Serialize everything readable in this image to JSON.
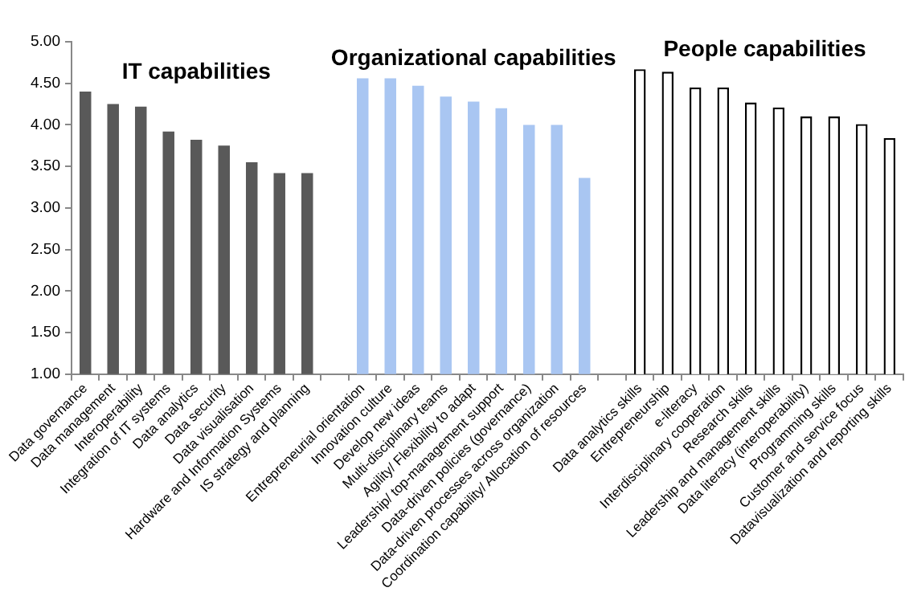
{
  "chart_data": {
    "type": "bar",
    "categories": [
      "Data governance",
      "Data management",
      "Interoperability",
      "Integration of IT systems",
      "Data analytics",
      "Data security",
      "Data visualisation",
      "Hardware and Information Systems",
      "IS strategy and planning",
      null,
      "Entrepreneurial orientation",
      "Innovation culture",
      "Develop new ideas",
      "Multi-disciplinary teams",
      "Agility/ Flexibility to adapt",
      "Leadership/ top-management support",
      "Data-driven policies (governance)",
      "Data-driven processes across organization",
      "Coordination capability/ Allocation of resources",
      null,
      "Data analytics skills",
      "Entrepreneurship",
      "e-literacy",
      "Interdisciplinary cooperation",
      "Research skills",
      "Leadership and management skills",
      "Data literacy (interoperability)",
      "Programming skills",
      "Customer and service focus",
      "Datavisualization and reporting skills"
    ],
    "series": [
      {
        "name": "IT capabilities",
        "color": "#595959",
        "values": [
          4.4,
          4.25,
          4.22,
          3.92,
          3.82,
          3.75,
          3.55,
          3.42,
          3.42,
          null,
          null,
          null,
          null,
          null,
          null,
          null,
          null,
          null,
          null,
          null,
          null,
          null,
          null,
          null,
          null,
          null,
          null,
          null,
          null,
          null
        ]
      },
      {
        "name": "Organizational capabilities",
        "color": "#a9c6f2",
        "values": [
          null,
          null,
          null,
          null,
          null,
          null,
          null,
          null,
          null,
          null,
          4.56,
          4.56,
          4.47,
          4.34,
          4.28,
          4.2,
          4.0,
          4.0,
          3.36,
          null,
          null,
          null,
          null,
          null,
          null,
          null,
          null,
          null,
          null,
          null
        ]
      },
      {
        "name": "People capabilities",
        "color": "#ffffff",
        "values": [
          null,
          null,
          null,
          null,
          null,
          null,
          null,
          null,
          null,
          null,
          null,
          null,
          null,
          null,
          null,
          null,
          null,
          null,
          null,
          null,
          4.67,
          4.64,
          4.45,
          4.45,
          4.27,
          4.21,
          4.1,
          4.1,
          4.01,
          3.84
        ]
      }
    ],
    "ylim": [
      1,
      5
    ],
    "yticks": [
      {
        "value": 1,
        "label": "1.00"
      },
      {
        "value": 1.5,
        "label": "1.50"
      },
      {
        "value": 2,
        "label": "2.00"
      },
      {
        "value": 2.5,
        "label": "2.50"
      },
      {
        "value": 3,
        "label": "3.00"
      },
      {
        "value": 3.5,
        "label": "3.50"
      },
      {
        "value": 4,
        "label": "4.00"
      },
      {
        "value": 4.5,
        "label": "4.50"
      },
      {
        "value": 5,
        "label": "5.00"
      }
    ],
    "grid": false,
    "legend": false
  }
}
